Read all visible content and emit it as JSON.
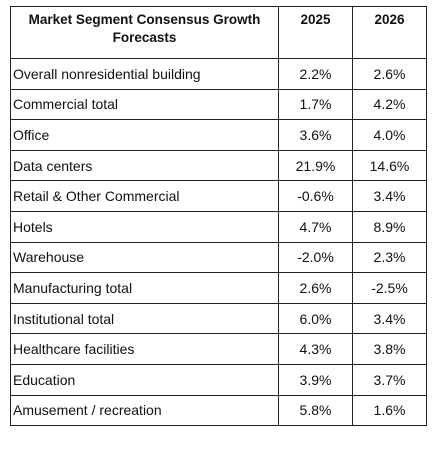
{
  "table": {
    "header": {
      "segment": "Market Segment Consensus Growth Forecasts",
      "year1": "2025",
      "year2": "2026"
    },
    "rows": [
      {
        "segment": "Overall nonresidential building",
        "y2025": "2.2%",
        "y2026": "2.6%"
      },
      {
        "segment": "Commercial total",
        "y2025": "1.7%",
        "y2026": "4.2%"
      },
      {
        "segment": "Office",
        "y2025": "3.6%",
        "y2026": "4.0%"
      },
      {
        "segment": "Data centers",
        "y2025": "21.9%",
        "y2026": "14.6%"
      },
      {
        "segment": "Retail & Other Commercial",
        "y2025": "-0.6%",
        "y2026": "3.4%"
      },
      {
        "segment": "Hotels",
        "y2025": "4.7%",
        "y2026": "8.9%"
      },
      {
        "segment": "Warehouse",
        "y2025": "-2.0%",
        "y2026": "2.3%"
      },
      {
        "segment": "Manufacturing total",
        "y2025": "2.6%",
        "y2026": "-2.5%"
      },
      {
        "segment": "Institutional total",
        "y2025": "6.0%",
        "y2026": "3.4%"
      },
      {
        "segment": "Healthcare facilities",
        "y2025": "4.3%",
        "y2026": "3.8%"
      },
      {
        "segment": "Education",
        "y2025": "3.9%",
        "y2026": "3.7%"
      },
      {
        "segment": "Amusement / recreation",
        "y2025": "5.8%",
        "y2026": "1.6%"
      }
    ]
  }
}
